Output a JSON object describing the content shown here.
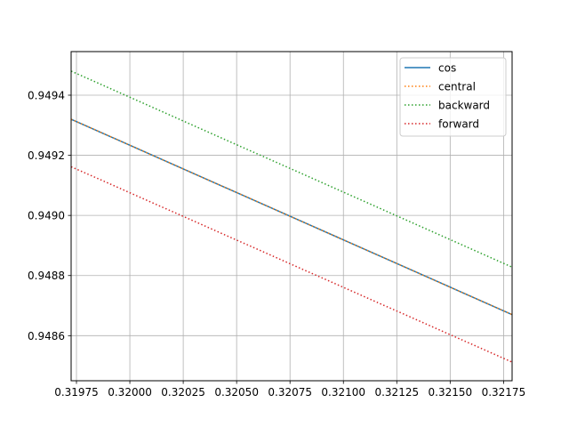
{
  "chart_data": {
    "type": "line",
    "title": "",
    "xlabel": "",
    "ylabel": "",
    "xlim": [
      0.319725,
      0.32179
    ],
    "ylim": [
      0.94845,
      0.949545
    ],
    "grid": true,
    "legend_position": "top-right",
    "x_ticks": [
      0.31975,
      0.32,
      0.32025,
      0.3205,
      0.32075,
      0.321,
      0.32125,
      0.3215,
      0.32175
    ],
    "x_tick_labels": [
      "0.31975",
      "0.32000",
      "0.32025",
      "0.32050",
      "0.32075",
      "0.32100",
      "0.32125",
      "0.32150",
      "0.32175"
    ],
    "y_ticks": [
      0.9486,
      0.9488,
      0.949,
      0.9492,
      0.9494
    ],
    "y_tick_labels": [
      "0.9486",
      "0.9488",
      "0.9490",
      "0.9492",
      "0.9494"
    ],
    "series": [
      {
        "name": "cos",
        "color": "#1f77b4",
        "style": "solid",
        "x": [
          0.319725,
          0.32179
        ],
        "y": [
          0.94932,
          0.94867
        ]
      },
      {
        "name": "central",
        "color": "#ff7f0e",
        "style": "dotted",
        "x": [
          0.319725,
          0.32179
        ],
        "y": [
          0.94932,
          0.94867
        ]
      },
      {
        "name": "backward",
        "color": "#2ca02c",
        "style": "dotted",
        "x": [
          0.319725,
          0.32179
        ],
        "y": [
          0.94948,
          0.948828
        ]
      },
      {
        "name": "forward",
        "color": "#d62728",
        "style": "dotted",
        "x": [
          0.319725,
          0.32179
        ],
        "y": [
          0.949162,
          0.948512
        ]
      }
    ]
  }
}
